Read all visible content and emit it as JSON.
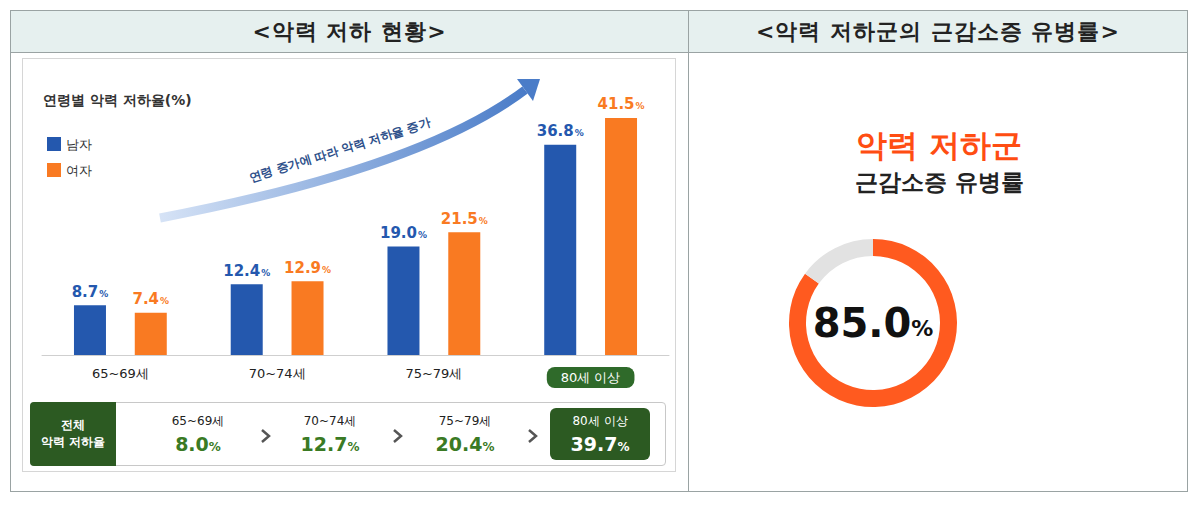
{
  "headers": [
    "<악력 저하 현황>",
    "<악력 저하군의 근감소증 유병률>"
  ],
  "chart_data": [
    {
      "type": "bar",
      "title": "연령별 악력 저하율(%)",
      "annotation": "연령 증가에 따라 악력 저하율 증가",
      "categories": [
        "65~69세",
        "70~74세",
        "75~79세",
        "80세 이상"
      ],
      "series": [
        {
          "name": "남자",
          "color": "#2458ae",
          "values": [
            8.7,
            12.4,
            19.0,
            36.8
          ],
          "value_labels": [
            "8.7%",
            "12.4%",
            "19.0%",
            "36.8%"
          ]
        },
        {
          "name": "여자",
          "color": "#f97a22",
          "values": [
            7.4,
            12.9,
            21.5,
            41.5
          ],
          "value_labels": [
            "7.4%",
            "12.9%",
            "21.5%",
            "41.5%"
          ]
        }
      ],
      "ylim": [
        0,
        45
      ],
      "tick_labels": "x",
      "grid": false,
      "legend": "upper left",
      "data_labels": true
    },
    {
      "type": "pie",
      "title": "악력 저하군",
      "subtitle": "근감소증 유병률",
      "values": [
        85.0,
        15.0
      ],
      "value_labels": [
        "85.0%",
        null
      ],
      "colors": [
        "#ff5a1f",
        "#e2e2e2"
      ]
    }
  ],
  "summary": {
    "title": [
      "전체",
      "악력 저하율"
    ],
    "categories": [
      "65~69세",
      "70~74세",
      "75~79세",
      "80세 이상"
    ],
    "values": [
      8.0,
      12.7,
      20.4,
      39.7
    ],
    "value_labels": [
      "8.0%",
      "12.7%",
      "20.4%",
      "39.7%"
    ]
  }
}
